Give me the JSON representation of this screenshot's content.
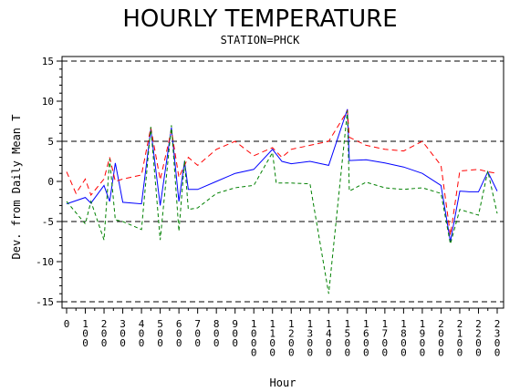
{
  "chart_data": {
    "type": "line",
    "title": "HOURLY TEMPERATURE",
    "subtitle": "STATION=PHCK",
    "xlabel": "Hour",
    "ylabel": "Dev. from Daily Mean T",
    "xlim": [
      0,
      2300
    ],
    "ylim": [
      -15,
      15
    ],
    "x_ticks": [
      "0",
      "100",
      "200",
      "300",
      "400",
      "500",
      "600",
      "700",
      "800",
      "900",
      "1000",
      "1100",
      "1200",
      "1300",
      "1400",
      "1500",
      "1600",
      "1700",
      "1800",
      "1900",
      "2000",
      "2100",
      "2200",
      "2300"
    ],
    "y_ticks": [
      -15,
      -10,
      -5,
      0,
      5,
      10,
      15
    ],
    "reference_lines": [
      -15,
      -5,
      5,
      15
    ],
    "series": [
      {
        "color": "#0000ff",
        "dash": "solid",
        "x": [
          0,
          100,
          130,
          200,
          230,
          260,
          300,
          400,
          450,
          500,
          560,
          600,
          630,
          650,
          700,
          800,
          900,
          1000,
          1100,
          1150,
          1200,
          1300,
          1400,
          1500,
          1510,
          1600,
          1700,
          1800,
          1900,
          2000,
          2050,
          2100,
          2150,
          2200,
          2250,
          2300
        ],
        "y": [
          -2.8,
          -2.0,
          -2.7,
          -0.5,
          -2.5,
          2.3,
          -2.6,
          -2.8,
          6.5,
          -3.0,
          6.7,
          -2.5,
          2.5,
          -1.0,
          -1.0,
          0.0,
          1.0,
          1.5,
          4.0,
          2.5,
          2.2,
          2.5,
          2.0,
          9.0,
          2.6,
          2.7,
          2.3,
          1.8,
          1.0,
          -0.5,
          -7.5,
          -1.2,
          -1.3,
          -1.3,
          1.2,
          -1.2
        ]
      },
      {
        "color": "#ff0000",
        "dash": "6,4",
        "x": [
          0,
          50,
          100,
          130,
          200,
          230,
          260,
          300,
          400,
          450,
          500,
          560,
          600,
          650,
          700,
          800,
          900,
          1000,
          1100,
          1150,
          1200,
          1300,
          1400,
          1500,
          1510,
          1600,
          1700,
          1800,
          1900,
          2000,
          2050,
          2100,
          2200,
          2250,
          2300
        ],
        "y": [
          1.2,
          -1.5,
          0.3,
          -1.7,
          0.3,
          3.0,
          0.0,
          0.3,
          0.8,
          6.7,
          0.2,
          6.4,
          0.5,
          3.0,
          2.0,
          4.0,
          5.0,
          3.2,
          4.2,
          3.0,
          4.0,
          4.5,
          5.0,
          8.8,
          5.5,
          4.5,
          4.0,
          3.8,
          5.0,
          2.0,
          -6.7,
          1.3,
          1.5,
          1.2,
          1.0
        ]
      },
      {
        "color": "#008000",
        "dash": "4,3",
        "x": [
          0,
          100,
          130,
          200,
          230,
          260,
          300,
          400,
          450,
          500,
          560,
          600,
          630,
          650,
          700,
          800,
          900,
          1000,
          1100,
          1120,
          1200,
          1300,
          1400,
          1500,
          1510,
          1600,
          1700,
          1800,
          1900,
          2000,
          2050,
          2100,
          2200,
          2250,
          2300
        ],
        "y": [
          -2.5,
          -5.3,
          -2.5,
          -7.3,
          2.8,
          -4.8,
          -5.0,
          -6.0,
          6.8,
          -7.3,
          7.0,
          -6.2,
          2.6,
          -3.5,
          -3.3,
          -1.5,
          -0.8,
          -0.5,
          3.6,
          -0.2,
          -0.2,
          -0.3,
          -14.0,
          8.8,
          -1.2,
          -0.1,
          -0.8,
          -1.0,
          -0.8,
          -1.5,
          -7.8,
          -3.5,
          -4.2,
          1.3,
          -4.0
        ]
      }
    ],
    "grid": false
  }
}
